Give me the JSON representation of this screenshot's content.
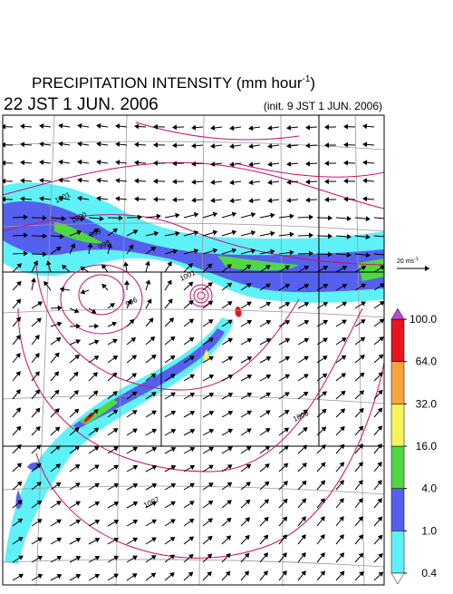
{
  "title": [
    "PRECIPITATION INTENSITY (mm hour",
    "-1",
    ")"
  ],
  "valid_time": "22 JST 1 JUN. 2006",
  "init_time": "(init. 9 JST 1 JUN. 2006)",
  "reference_vector": [
    "20 ms",
    "-1"
  ],
  "contour_labels": [
    1001,
    1000,
    999,
    998,
    996,
    1001,
    1006,
    1007
  ],
  "colorbar": {
    "levels": [
      {
        "value": 0.4,
        "label": "0.4"
      },
      {
        "value": 1,
        "label": "1.0"
      },
      {
        "value": 4,
        "label": "4.0"
      },
      {
        "value": 16,
        "label": "16.0"
      },
      {
        "value": 32,
        "label": "32.0"
      },
      {
        "value": 64,
        "label": "64.0"
      },
      {
        "value": 100,
        "label": "100.0"
      }
    ],
    "colors": [
      "#5ef2f8",
      "#5560ee",
      "#4fd840",
      "#f7f35a",
      "#f8a43c",
      "#e8141e"
    ],
    "over_color": "#b84ad8",
    "under_color": "#ffffff"
  }
}
